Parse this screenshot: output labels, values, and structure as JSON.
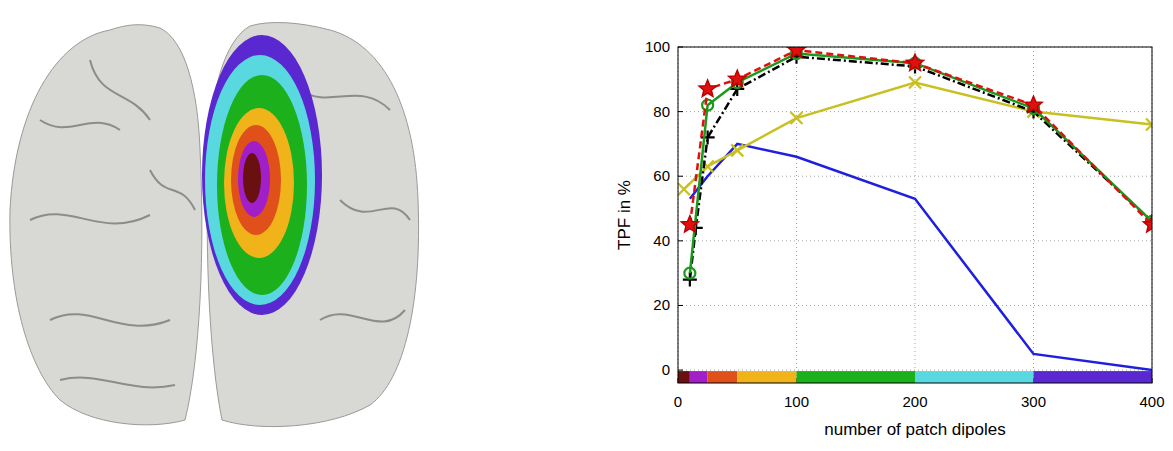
{
  "chart_data": {
    "type": "line",
    "x_label": "number of patch dipoles",
    "y_label": "TPF in %",
    "xlim": [
      0,
      400
    ],
    "xticks": [
      0,
      100,
      200,
      300,
      400
    ],
    "ylim": [
      -4,
      100
    ],
    "yticks": [
      0,
      20,
      40,
      60,
      80,
      100
    ],
    "grid": true,
    "bands": [
      {
        "from": 0,
        "to": 10,
        "color": "#6a1010"
      },
      {
        "from": 10,
        "to": 25,
        "color": "#a01fc8"
      },
      {
        "from": 25,
        "to": 50,
        "color": "#e0501a"
      },
      {
        "from": 50,
        "to": 100,
        "color": "#f0b41a"
      },
      {
        "from": 100,
        "to": 200,
        "color": "#1cb01c"
      },
      {
        "from": 200,
        "to": 300,
        "color": "#5ad8e0"
      },
      {
        "from": 300,
        "to": 400,
        "color": "#5a28d0"
      }
    ],
    "series": [
      {
        "color": "#1f1fe0",
        "line_style": "solid",
        "marker": "none",
        "x": [
          10,
          25,
          50,
          100,
          200,
          300,
          400
        ],
        "values": [
          53,
          60,
          70,
          66,
          53,
          5,
          0
        ]
      },
      {
        "color": "#c8c020",
        "line_style": "solid",
        "marker": "x",
        "x": [
          5,
          25,
          50,
          100,
          200,
          300,
          400
        ],
        "values": [
          56,
          63,
          68,
          78,
          89,
          80,
          76
        ]
      },
      {
        "color": "#000000",
        "line_style": "dashdot",
        "marker": "plus",
        "x": [
          10,
          15,
          25,
          50,
          100,
          200,
          300,
          400
        ],
        "values": [
          28,
          44,
          72,
          87,
          97,
          94,
          80,
          46
        ]
      },
      {
        "color": "#1a9a1a",
        "line_style": "solid",
        "marker": "circle",
        "x": [
          10,
          25,
          50,
          100,
          200,
          300,
          400
        ],
        "values": [
          30,
          82,
          89,
          98,
          95,
          81,
          46
        ]
      },
      {
        "color": "#e01010",
        "line_style": "dashed",
        "marker": "star",
        "x": [
          10,
          25,
          50,
          100,
          200,
          300,
          400
        ],
        "values": [
          45,
          87,
          90,
          99,
          95,
          82,
          45
        ]
      }
    ]
  }
}
